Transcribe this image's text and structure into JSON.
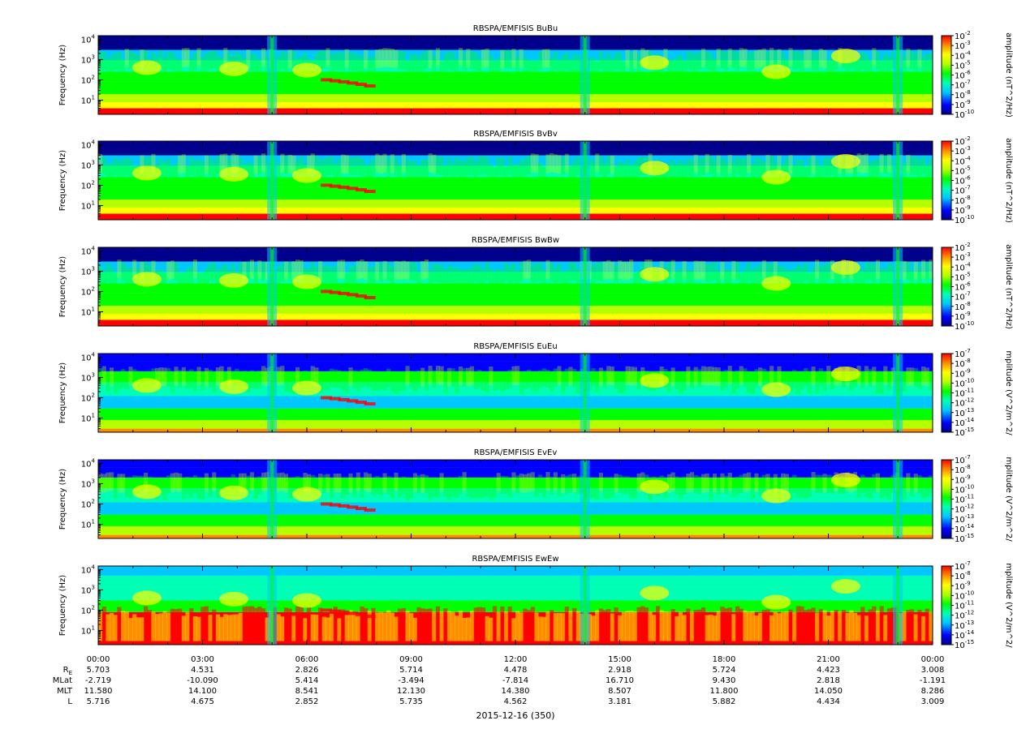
{
  "figure": {
    "date_label": "2015-12-16 (350)"
  },
  "chart_data": [
    {
      "type": "heatmap",
      "title": "RBSPA/EMFISIS  BuBu",
      "ylabel": "Frequency (Hz)",
      "yscale": "log",
      "ylim": [
        2,
        15000
      ],
      "yticks": [
        "10^1",
        "10^2",
        "10^3",
        "10^4"
      ],
      "colorbar_label": "amplitude (nT^2/Hz)",
      "colorbar_ticks": [
        "10^-2",
        "10^-3",
        "10^-4",
        "10^-5",
        "10^-6",
        "10^-7",
        "10^-8",
        "10^-9",
        "10^-10"
      ],
      "kind": "B"
    },
    {
      "type": "heatmap",
      "title": "RBSPA/EMFISIS  BvBv",
      "ylabel": "Frequency (Hz)",
      "yscale": "log",
      "ylim": [
        2,
        15000
      ],
      "yticks": [
        "10^1",
        "10^2",
        "10^3",
        "10^4"
      ],
      "colorbar_label": "amplitude (nT^2/Hz)",
      "colorbar_ticks": [
        "10^-2",
        "10^-3",
        "10^-4",
        "10^-5",
        "10^-6",
        "10^-7",
        "10^-8",
        "10^-9",
        "10^-10"
      ],
      "kind": "B"
    },
    {
      "type": "heatmap",
      "title": "RBSPA/EMFISIS  BwBw",
      "ylabel": "Frequency (Hz)",
      "yscale": "log",
      "ylim": [
        2,
        15000
      ],
      "yticks": [
        "10^1",
        "10^2",
        "10^3",
        "10^4"
      ],
      "colorbar_label": "amplitude (nT^2/Hz)",
      "colorbar_ticks": [
        "10^-2",
        "10^-3",
        "10^-4",
        "10^-5",
        "10^-6",
        "10^-7",
        "10^-8",
        "10^-9",
        "10^-10"
      ],
      "kind": "B"
    },
    {
      "type": "heatmap",
      "title": "RBSPA/EMFISIS  EuEu",
      "ylabel": "Frequency (Hz)",
      "yscale": "log",
      "ylim": [
        2,
        15000
      ],
      "yticks": [
        "10^1",
        "10^2",
        "10^3",
        "10^4"
      ],
      "colorbar_label": "mplitude (V^2/m^2/",
      "colorbar_ticks": [
        "10^-7",
        "10^-8",
        "10^-9",
        "10^-10",
        "10^-11",
        "10^-12",
        "10^-13",
        "10^-14",
        "10^-15"
      ],
      "kind": "E"
    },
    {
      "type": "heatmap",
      "title": "RBSPA/EMFISIS  EvEv",
      "ylabel": "Frequency (Hz)",
      "yscale": "log",
      "ylim": [
        2,
        15000
      ],
      "yticks": [
        "10^1",
        "10^2",
        "10^3",
        "10^4"
      ],
      "colorbar_label": "mplitude (V^2/m^2/",
      "colorbar_ticks": [
        "10^-7",
        "10^-8",
        "10^-9",
        "10^-10",
        "10^-11",
        "10^-12",
        "10^-13",
        "10^-14",
        "10^-15"
      ],
      "kind": "E"
    },
    {
      "type": "heatmap",
      "title": "RBSPA/EMFISIS  EwEw",
      "ylabel": "Frequency (Hz)",
      "yscale": "log",
      "ylim": [
        2,
        15000
      ],
      "yticks": [
        "10^1",
        "10^2",
        "10^3",
        "10^4"
      ],
      "colorbar_label": "mplitude (V^2/m^2/",
      "colorbar_ticks": [
        "10^-7",
        "10^-8",
        "10^-9",
        "10^-10",
        "10^-11",
        "10^-12",
        "10^-13",
        "10^-14",
        "10^-15"
      ],
      "kind": "Ew"
    }
  ],
  "x_axis": {
    "tick_labels": [
      "00:00",
      "03:00",
      "06:00",
      "09:00",
      "12:00",
      "15:00",
      "18:00",
      "21:00",
      "00:00"
    ],
    "rows": [
      {
        "label": "R",
        "sub": "E",
        "values": [
          "5.703",
          "4.531",
          "2.826",
          "5.714",
          "4.478",
          "2.918",
          "5.724",
          "4.423",
          "3.008"
        ]
      },
      {
        "label": "MLat",
        "values": [
          "-2.719",
          "-10.090",
          "5.414",
          "-3.494",
          "-7.814",
          "16.710",
          "9.430",
          "2.818",
          "-1.191"
        ]
      },
      {
        "label": "MLT",
        "values": [
          "11.580",
          "14.100",
          "8.541",
          "12.130",
          "14.380",
          "8.507",
          "11.800",
          "14.050",
          "8.286"
        ]
      },
      {
        "label": "L",
        "values": [
          "5.716",
          "4.675",
          "2.852",
          "5.735",
          "4.562",
          "3.181",
          "5.882",
          "4.434",
          "3.009"
        ]
      }
    ]
  }
}
